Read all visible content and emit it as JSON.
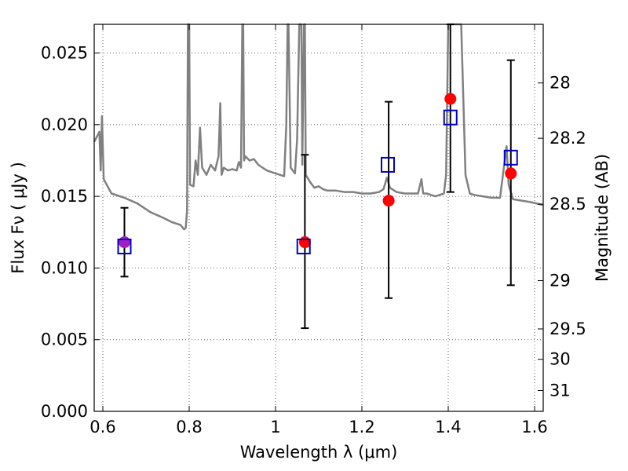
{
  "chart_data": {
    "type": "scatter",
    "xlabel": "Wavelength  λ (μm)",
    "ylabel": "Flux  Fν  ( μJy )",
    "y2label": "Magnitude (AB)",
    "xlim": [
      0.58,
      1.62
    ],
    "ylim": [
      0.0,
      0.027
    ],
    "grid": true,
    "x_ticks": [
      0.6,
      0.8,
      1.0,
      1.2,
      1.4,
      1.6
    ],
    "x_tick_labels": [
      "0.6",
      "0.8",
      "1",
      "1.2",
      "1.4",
      "1.6"
    ],
    "y_ticks": [
      0.0,
      0.005,
      0.01,
      0.015,
      0.02,
      0.025
    ],
    "y_tick_labels": [
      "0.000",
      "0.005",
      "0.010",
      "0.015",
      "0.020",
      "0.025"
    ],
    "y2_ticks": [
      {
        "label": "28",
        "flux": 0.02291
      },
      {
        "label": "28.2",
        "flux": 0.01905
      },
      {
        "label": "28.5",
        "flux": 0.01445
      },
      {
        "label": "29",
        "flux": 0.00912
      },
      {
        "label": "29.5",
        "flux": 0.00575
      },
      {
        "label": "30",
        "flux": 0.00363
      },
      {
        "label": "31",
        "flux": 0.00145
      }
    ],
    "series": [
      {
        "kind": "model_spectrum",
        "color": "#808080",
        "points": [
          [
            0.58,
            0.0188
          ],
          [
            0.592,
            0.0195
          ],
          [
            0.595,
            0.0168
          ],
          [
            0.598,
            0.0206
          ],
          [
            0.602,
            0.0162
          ],
          [
            0.62,
            0.0152
          ],
          [
            0.65,
            0.0149
          ],
          [
            0.68,
            0.0145
          ],
          [
            0.71,
            0.0139
          ],
          [
            0.74,
            0.0135
          ],
          [
            0.76,
            0.0132
          ],
          [
            0.78,
            0.013
          ],
          [
            0.788,
            0.0127
          ],
          [
            0.792,
            0.0128
          ],
          [
            0.795,
            0.014
          ],
          [
            0.797,
            0.027
          ],
          [
            0.8,
            0.027
          ],
          [
            0.802,
            0.0158
          ],
          [
            0.81,
            0.0157
          ],
          [
            0.815,
            0.0175
          ],
          [
            0.82,
            0.0165
          ],
          [
            0.825,
            0.0198
          ],
          [
            0.83,
            0.017
          ],
          [
            0.84,
            0.0165
          ],
          [
            0.85,
            0.0172
          ],
          [
            0.86,
            0.0168
          ],
          [
            0.868,
            0.0178
          ],
          [
            0.872,
            0.0215
          ],
          [
            0.875,
            0.0165
          ],
          [
            0.88,
            0.017
          ],
          [
            0.89,
            0.0168
          ],
          [
            0.9,
            0.0169
          ],
          [
            0.91,
            0.0168
          ],
          [
            0.915,
            0.0174
          ],
          [
            0.92,
            0.017
          ],
          [
            0.923,
            0.027
          ],
          [
            0.925,
            0.027
          ],
          [
            0.927,
            0.0175
          ],
          [
            0.93,
            0.0178
          ],
          [
            0.94,
            0.0175
          ],
          [
            0.95,
            0.0176
          ],
          [
            0.96,
            0.0172
          ],
          [
            0.97,
            0.017
          ],
          [
            0.98,
            0.0168
          ],
          [
            0.99,
            0.0167
          ],
          [
            1.0,
            0.0166
          ],
          [
            1.01,
            0.0165
          ],
          [
            1.02,
            0.0164
          ],
          [
            1.025,
            0.02
          ],
          [
            1.028,
            0.027
          ],
          [
            1.03,
            0.027
          ],
          [
            1.035,
            0.017
          ],
          [
            1.045,
            0.0166
          ],
          [
            1.05,
            0.019
          ],
          [
            1.055,
            0.027
          ],
          [
            1.06,
            0.027
          ],
          [
            1.062,
            0.0172
          ],
          [
            1.066,
            0.027
          ],
          [
            1.068,
            0.027
          ],
          [
            1.07,
            0.0165
          ],
          [
            1.08,
            0.016
          ],
          [
            1.09,
            0.0156
          ],
          [
            1.1,
            0.0157
          ],
          [
            1.11,
            0.0155
          ],
          [
            1.12,
            0.0154
          ],
          [
            1.14,
            0.0154
          ],
          [
            1.16,
            0.0153
          ],
          [
            1.18,
            0.0153
          ],
          [
            1.2,
            0.0152
          ],
          [
            1.22,
            0.0152
          ],
          [
            1.24,
            0.0153
          ],
          [
            1.25,
            0.0155
          ],
          [
            1.258,
            0.0163
          ],
          [
            1.265,
            0.0156
          ],
          [
            1.28,
            0.0153
          ],
          [
            1.3,
            0.0152
          ],
          [
            1.32,
            0.0152
          ],
          [
            1.33,
            0.0152
          ],
          [
            1.338,
            0.0162
          ],
          [
            1.342,
            0.0152
          ],
          [
            1.35,
            0.0152
          ],
          [
            1.36,
            0.0151
          ],
          [
            1.37,
            0.015
          ],
          [
            1.38,
            0.0151
          ],
          [
            1.39,
            0.0152
          ],
          [
            1.395,
            0.0165
          ],
          [
            1.4,
            0.027
          ],
          [
            1.405,
            0.027
          ],
          [
            1.41,
            0.027
          ],
          [
            1.415,
            0.027
          ],
          [
            1.42,
            0.027
          ],
          [
            1.43,
            0.027
          ],
          [
            1.44,
            0.0165
          ],
          [
            1.45,
            0.0152
          ],
          [
            1.46,
            0.0151
          ],
          [
            1.48,
            0.015
          ],
          [
            1.5,
            0.0149
          ],
          [
            1.52,
            0.0149
          ],
          [
            1.535,
            0.0185
          ],
          [
            1.54,
            0.0158
          ],
          [
            1.55,
            0.0148
          ],
          [
            1.57,
            0.0147
          ],
          [
            1.59,
            0.0146
          ],
          [
            1.62,
            0.0144
          ]
        ]
      },
      {
        "kind": "model_photometry",
        "marker": "open-square",
        "color": "#0000cc",
        "points": [
          {
            "x": 0.65,
            "y": 0.0115
          },
          {
            "x": 1.065,
            "y": 0.0115
          },
          {
            "x": 1.26,
            "y": 0.0172
          },
          {
            "x": 1.405,
            "y": 0.0205
          },
          {
            "x": 1.545,
            "y": 0.0177
          }
        ]
      },
      {
        "kind": "observed",
        "marker": "filled-circle",
        "color": "#ff0000",
        "points": [
          {
            "x": 0.65,
            "y": 0.0118,
            "yerr_low": 0.0094,
            "yerr_high": 0.0142,
            "color": "#a020c0"
          },
          {
            "x": 1.068,
            "y": 0.0118,
            "yerr_low": 0.0058,
            "yerr_high": 0.0179
          },
          {
            "x": 1.262,
            "y": 0.0147,
            "yerr_low": 0.0079,
            "yerr_high": 0.0216
          },
          {
            "x": 1.405,
            "y": 0.0218,
            "yerr_low": 0.0153,
            "yerr_high": 0.027
          },
          {
            "x": 1.545,
            "y": 0.0166,
            "yerr_low": 0.0088,
            "yerr_high": 0.0245
          }
        ]
      }
    ]
  }
}
